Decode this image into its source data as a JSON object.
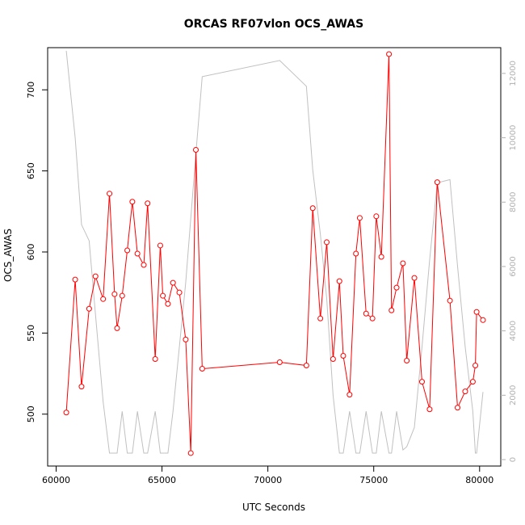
{
  "chart_data": {
    "type": "line",
    "title": "ORCAS RF07vlon OCS_AWAS",
    "xlabel": "UTC Seconds",
    "ylabel": "OCS_AWAS",
    "xlim": [
      59600,
      81000
    ],
    "ylim": [
      468,
      726
    ],
    "y2lim": [
      -200,
      12800
    ],
    "x_ticks": [
      60000,
      65000,
      70000,
      75000,
      80000
    ],
    "y_ticks": [
      500,
      550,
      600,
      650,
      700
    ],
    "y2_ticks": [
      0,
      2000,
      4000,
      6000,
      8000,
      10000,
      12000
    ],
    "grid": false,
    "legend": "none",
    "colors": {
      "primary": "#ff0000",
      "secondary": "#c0c0c0",
      "axis": "#000000",
      "secondary_axis": "#b0b0b0"
    },
    "series": [
      {
        "axis": "left",
        "style": "line-with-circles",
        "x": [
          60480,
          60900,
          61200,
          61560,
          61860,
          62220,
          62520,
          62760,
          62880,
          63120,
          63360,
          63600,
          63840,
          64140,
          64320,
          64680,
          64920,
          65040,
          65280,
          65520,
          65820,
          66120,
          66360,
          66600,
          66900,
          70560,
          71820,
          72120,
          72480,
          72780,
          73080,
          73380,
          73560,
          73860,
          74160,
          74340,
          74640,
          74940,
          75120,
          75360,
          75720,
          75840,
          76080,
          76380,
          76560,
          76920,
          77280,
          77640,
          78000,
          78600,
          78960,
          79320,
          79680,
          79800,
          79860,
          80160
        ],
        "values": [
          501,
          583,
          517,
          565,
          585,
          571,
          636,
          574,
          553,
          573,
          601,
          631,
          599,
          592,
          630,
          534,
          604,
          573,
          568,
          581,
          575,
          546,
          476,
          663,
          528,
          532,
          530,
          627,
          559,
          606,
          534,
          582,
          536,
          512,
          599,
          621,
          562,
          559,
          622,
          597,
          722,
          564,
          578,
          593,
          533,
          584,
          520,
          503,
          643,
          570,
          504,
          514,
          520,
          530,
          563,
          558
        ]
      },
      {
        "axis": "right",
        "style": "line",
        "x": [
          60480,
          60900,
          61200,
          61560,
          61860,
          62220,
          62520,
          62760,
          62880,
          63120,
          63360,
          63600,
          63840,
          64140,
          64320,
          64680,
          64920,
          65040,
          65280,
          65520,
          65820,
          66120,
          66360,
          66600,
          66900,
          70560,
          71820,
          72120,
          72480,
          72780,
          73080,
          73380,
          73560,
          73860,
          74160,
          74340,
          74640,
          74940,
          75120,
          75360,
          75720,
          75840,
          76080,
          76380,
          76560,
          76920,
          77280,
          77640,
          78000,
          78600,
          78960,
          79320,
          79680,
          79800,
          79860,
          80160
        ],
        "values": [
          12700,
          10000,
          7300,
          6800,
          4500,
          1800,
          200,
          200,
          200,
          1500,
          200,
          200,
          1500,
          200,
          200,
          1500,
          200,
          200,
          200,
          1500,
          3500,
          5500,
          7500,
          9500,
          11900,
          12400,
          11600,
          9000,
          7000,
          5000,
          2000,
          200,
          200,
          1500,
          200,
          200,
          1500,
          200,
          200,
          1500,
          200,
          200,
          1500,
          300,
          400,
          1000,
          3500,
          6200,
          8600,
          8700,
          6000,
          3500,
          1500,
          200,
          200,
          2100
        ]
      }
    ]
  }
}
